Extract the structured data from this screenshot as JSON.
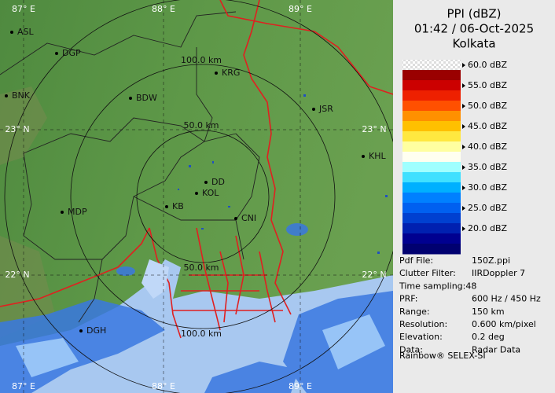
{
  "panel": {
    "title": "PPI (dBZ)",
    "time": "01:42 / 06-Oct-2025",
    "location": "Kolkata"
  },
  "legend": [
    "60.0 dBZ",
    "55.0 dBZ",
    "50.0 dBZ",
    "45.0 dBZ",
    "40.0 dBZ",
    "35.0 dBZ",
    "30.0 dBZ",
    "25.0 dBZ",
    "20.0 dBZ"
  ],
  "info": [
    [
      "Pdf File:",
      "150Z.ppi"
    ],
    [
      "Clutter Filter:",
      "IIRDoppler 7"
    ],
    [
      "Time sampling:48",
      ""
    ],
    [
      "PRF:",
      "600 Hz / 450 Hz"
    ],
    [
      "Range:",
      "150 km"
    ],
    [
      "Resolution:",
      "0.600 km/pixel"
    ],
    [
      "Elevation:",
      "0.2 deg"
    ],
    [
      "Data:",
      "Radar Data"
    ]
  ],
  "footer": "Rainbow® SELEX-SI",
  "map": {
    "lon_labels": [
      "87° E",
      "88° E",
      "89° E"
    ],
    "lat_labels": [
      "23° N",
      "22° N"
    ],
    "range_labels": [
      "100.0 km",
      "50.0 km",
      "50.0 km",
      "100.0 km"
    ],
    "places": [
      "ASL",
      "DGP",
      "KRG",
      "BDW",
      "BNK",
      "JSR",
      "KHL",
      "DD",
      "KOL",
      "KB",
      "CNI",
      "MDP",
      "DGH"
    ]
  }
}
